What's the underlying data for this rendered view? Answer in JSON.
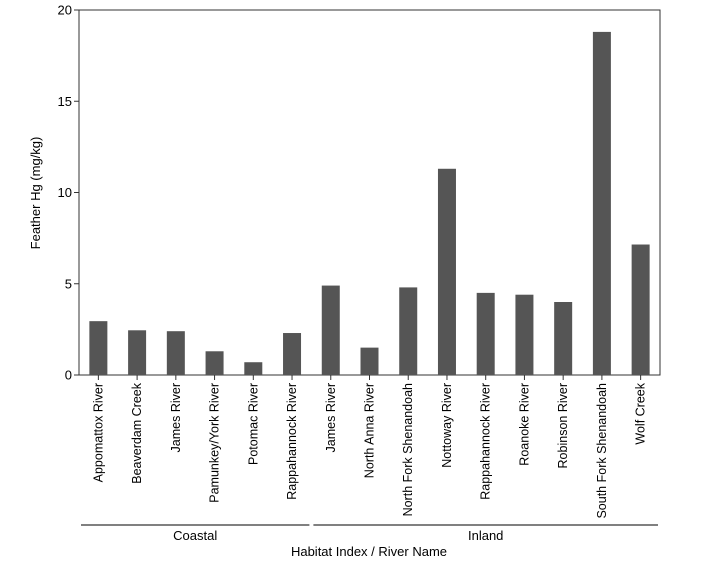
{
  "chart_data": {
    "type": "bar",
    "ylabel": "Feather Hg (mg/kg)",
    "xlabel": "Habitat Index / River Name",
    "ylim": [
      0,
      20
    ],
    "yticks": [
      0,
      5,
      10,
      15,
      20
    ],
    "categories": [
      "Appomattox River",
      "Beaverdam Creek",
      "James River",
      "Pamunkey/York River",
      "Potomac River",
      "Rappahannock River",
      "James River",
      "North Anna River",
      "North Fork Shenandoah",
      "Nottoway River",
      "Rappahannock River",
      "Roanoke River",
      "Robinson River",
      "South Fork Shenandoah",
      "Wolf Creek"
    ],
    "values": [
      2.95,
      2.45,
      2.4,
      1.3,
      0.7,
      2.3,
      4.9,
      1.5,
      4.8,
      11.3,
      4.5,
      4.4,
      4.0,
      18.8,
      7.15
    ],
    "groups": [
      {
        "label": "Coastal",
        "start": 0,
        "end": 5
      },
      {
        "label": "Inland",
        "start": 6,
        "end": 14
      }
    ],
    "bar_color": "#555555",
    "grid": false
  }
}
